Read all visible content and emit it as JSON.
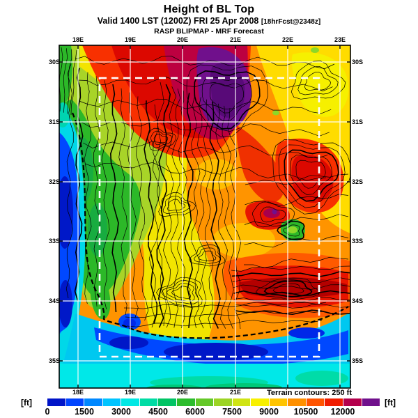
{
  "header": {
    "title": "Height of BL Top",
    "valid_line": "Valid 1400 LST (1200Z) FRI 25 Apr 2008",
    "forecast_tag": "[18hrFcst@2348z]",
    "model_line": "RASP BLIPMAP - MRF Forecast"
  },
  "map": {
    "top_axis": [
      "18E",
      "19E",
      "20E",
      "21E",
      "22E",
      "23E"
    ],
    "bottom_axis": [
      "18E",
      "19E",
      "20E",
      "21E"
    ],
    "left_axis": [
      "30S",
      "31S",
      "32S",
      "33S",
      "34S",
      "35S"
    ],
    "right_axis": [
      "30S",
      "31S",
      "32S",
      "33S",
      "34S",
      "35S"
    ],
    "terrain_note": "Terrain contours: 250 ft"
  },
  "colorbar": {
    "unit_left": "[ft]",
    "unit_right": "[ft]",
    "tick_labels": [
      "0",
      "1500",
      "3000",
      "4500",
      "6000",
      "7500",
      "9000",
      "10500",
      "12000"
    ],
    "colors": [
      "#0014C8",
      "#0044FF",
      "#0088FF",
      "#00C4FF",
      "#00E8E4",
      "#00DCA4",
      "#00C464",
      "#2CBC2C",
      "#64C828",
      "#9CD424",
      "#D0E414",
      "#F8F000",
      "#FFC400",
      "#FF9000",
      "#FF5400",
      "#F01C00",
      "#B4004C",
      "#70108C"
    ]
  },
  "chart_data": {
    "type": "heatmap",
    "title": "Height of BL Top",
    "subtitle": "Valid 1400 LST (1200Z) FRI 25 Apr 2008 [18hrFcst@2348z]",
    "model": "RASP BLIPMAP - MRF Forecast",
    "units": "ft",
    "colorbar_ticks": [
      0,
      1500,
      3000,
      4500,
      6000,
      7500,
      9000,
      10500,
      12000
    ],
    "colorbar_bin_size_ft": 750,
    "x_axis": {
      "label_type": "longitude",
      "ticks": [
        "18E",
        "19E",
        "20E",
        "21E",
        "22E",
        "23E"
      ]
    },
    "y_axis": {
      "label_type": "latitude",
      "ticks": [
        "30S",
        "31S",
        "32S",
        "33S",
        "34S",
        "35S"
      ]
    },
    "annotations": [
      "Terrain contours: 250 ft",
      "white dashed inner model-domain box"
    ],
    "description": "Filled-contour forecast map of boundary-layer top height over the Western Cape of South Africa; >12000 ft (purple/maroon) core near 20.5E/30.5S, 9000-11000 ft (orange/red) over the Karoo interior, 4500-6000 ft (green) over the southwest Cape, <3000 ft (blue/cyan) over the Atlantic and south coast waters; black terrain contours every 250 ft"
  }
}
